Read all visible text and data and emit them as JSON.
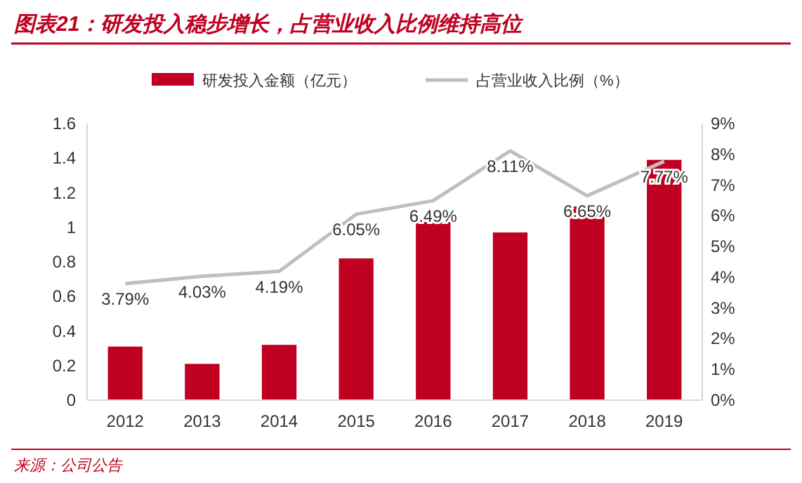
{
  "chart_data": {
    "type": "bar",
    "title": "图表21：研发投入稳步增长，占营业收入比例维持高位",
    "annotations": [
      "来源：公司公告"
    ],
    "categories": [
      "2012",
      "2013",
      "2014",
      "2015",
      "2016",
      "2017",
      "2018",
      "2019"
    ],
    "series": [
      {
        "name": "研发投入金额（亿元）",
        "color": "#c00020",
        "values": [
          0.31,
          0.21,
          0.32,
          0.82,
          1.03,
          0.97,
          1.12,
          1.39
        ]
      },
      {
        "name": "占营业收入比例（%）",
        "type": "line",
        "axis": "y2",
        "color": "#bfbfbf",
        "values": [
          3.79,
          4.03,
          4.19,
          6.05,
          6.49,
          8.11,
          6.65,
          7.77
        ],
        "value_labels": [
          "3.79%",
          "4.03%",
          "4.19%",
          "6.05%",
          "6.49%",
          "8.11%",
          "6.65%",
          "7.77%"
        ]
      }
    ],
    "ylim": [
      0,
      1.6
    ],
    "yticks": [
      0,
      0.2,
      0.4,
      0.6,
      0.8,
      1,
      1.2,
      1.4,
      1.6
    ],
    "y2lim": [
      0,
      9
    ],
    "y2ticks": [
      {
        "value": 0,
        "label": "0%"
      },
      {
        "value": 1,
        "label": "1%"
      },
      {
        "value": 2,
        "label": "2%"
      },
      {
        "value": 3,
        "label": "3%"
      },
      {
        "value": 4,
        "label": "4%"
      },
      {
        "value": 5,
        "label": "5%"
      },
      {
        "value": 6,
        "label": "6%"
      },
      {
        "value": 7,
        "label": "7%"
      },
      {
        "value": 8,
        "label": "8%"
      },
      {
        "value": 9,
        "label": "9%"
      }
    ],
    "legend": "top",
    "grid": false
  }
}
